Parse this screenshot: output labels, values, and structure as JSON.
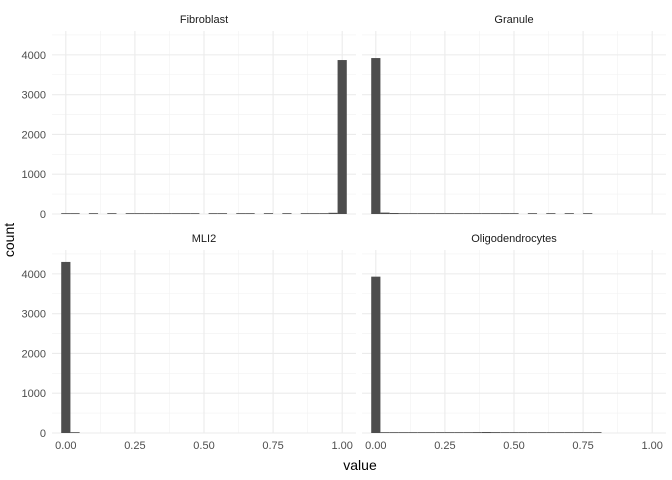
{
  "chart_data": {
    "type": "bar",
    "xlabel": "value",
    "ylabel": "count",
    "xlim": [
      -0.05,
      1.05
    ],
    "ylim": [
      0,
      4600
    ],
    "x_ticks": [
      0,
      0.25,
      0.5,
      0.75,
      1
    ],
    "x_tick_labels": [
      "0.00",
      "0.25",
      "0.50",
      "0.75",
      "1.00"
    ],
    "y_ticks": [
      0,
      1000,
      2000,
      3000,
      4000
    ],
    "y_tick_labels": [
      "0",
      "1000",
      "2000",
      "3000",
      "4000"
    ],
    "grid": true,
    "bar_color": "#4d4d4d",
    "bin_width": 0.0333,
    "panels": [
      {
        "name": "Fibroblast",
        "bins": [
          {
            "x": 0.0,
            "count": 2
          },
          {
            "x": 0.0333,
            "count": 3
          },
          {
            "x": 0.1,
            "count": 5
          },
          {
            "x": 0.1667,
            "count": 8
          },
          {
            "x": 0.2333,
            "count": 10
          },
          {
            "x": 0.2667,
            "count": 12
          },
          {
            "x": 0.3,
            "count": 14
          },
          {
            "x": 0.3333,
            "count": 18
          },
          {
            "x": 0.3667,
            "count": 20
          },
          {
            "x": 0.4,
            "count": 16
          },
          {
            "x": 0.4333,
            "count": 18
          },
          {
            "x": 0.4667,
            "count": 15
          },
          {
            "x": 0.5333,
            "count": 10
          },
          {
            "x": 0.5667,
            "count": 12
          },
          {
            "x": 0.6333,
            "count": 9
          },
          {
            "x": 0.6667,
            "count": 12
          },
          {
            "x": 0.7333,
            "count": 10
          },
          {
            "x": 0.8,
            "count": 8
          },
          {
            "x": 0.8667,
            "count": 10
          },
          {
            "x": 0.9,
            "count": 15
          },
          {
            "x": 0.9333,
            "count": 20
          },
          {
            "x": 0.9667,
            "count": 30
          },
          {
            "x": 1.0,
            "count": 3870
          }
        ]
      },
      {
        "name": "Granule",
        "bins": [
          {
            "x": 0.0,
            "count": 3920
          },
          {
            "x": 0.0333,
            "count": 35
          },
          {
            "x": 0.0667,
            "count": 25
          },
          {
            "x": 0.1,
            "count": 20
          },
          {
            "x": 0.1333,
            "count": 18
          },
          {
            "x": 0.1667,
            "count": 16
          },
          {
            "x": 0.2,
            "count": 15
          },
          {
            "x": 0.2333,
            "count": 14
          },
          {
            "x": 0.2667,
            "count": 13
          },
          {
            "x": 0.3,
            "count": 12
          },
          {
            "x": 0.3333,
            "count": 10
          },
          {
            "x": 0.3667,
            "count": 8
          },
          {
            "x": 0.4,
            "count": 7
          },
          {
            "x": 0.4333,
            "count": 6
          },
          {
            "x": 0.4667,
            "count": 5
          },
          {
            "x": 0.5,
            "count": 4
          },
          {
            "x": 0.5667,
            "count": 3
          },
          {
            "x": 0.6333,
            "count": 2
          },
          {
            "x": 0.7,
            "count": 2
          },
          {
            "x": 0.7667,
            "count": 1
          }
        ]
      },
      {
        "name": "MLI2",
        "bins": [
          {
            "x": 0.0,
            "count": 4300
          },
          {
            "x": 0.0333,
            "count": 2
          }
        ]
      },
      {
        "name": "Oligodendrocytes",
        "bins": [
          {
            "x": 0.0,
            "count": 3930
          },
          {
            "x": 0.0333,
            "count": 20
          },
          {
            "x": 0.0667,
            "count": 15
          },
          {
            "x": 0.1,
            "count": 12
          },
          {
            "x": 0.1333,
            "count": 14
          },
          {
            "x": 0.1667,
            "count": 16
          },
          {
            "x": 0.2,
            "count": 15
          },
          {
            "x": 0.2333,
            "count": 18
          },
          {
            "x": 0.2667,
            "count": 20
          },
          {
            "x": 0.3,
            "count": 18
          },
          {
            "x": 0.3333,
            "count": 20
          },
          {
            "x": 0.3667,
            "count": 22
          },
          {
            "x": 0.4,
            "count": 25
          },
          {
            "x": 0.4333,
            "count": 22
          },
          {
            "x": 0.4667,
            "count": 20
          },
          {
            "x": 0.5,
            "count": 18
          },
          {
            "x": 0.5333,
            "count": 12
          },
          {
            "x": 0.5667,
            "count": 10
          },
          {
            "x": 0.6,
            "count": 8
          },
          {
            "x": 0.6333,
            "count": 7
          },
          {
            "x": 0.6667,
            "count": 6
          },
          {
            "x": 0.7,
            "count": 5
          },
          {
            "x": 0.7333,
            "count": 4
          },
          {
            "x": 0.7667,
            "count": 3
          },
          {
            "x": 0.8,
            "count": 2
          }
        ]
      }
    ]
  }
}
